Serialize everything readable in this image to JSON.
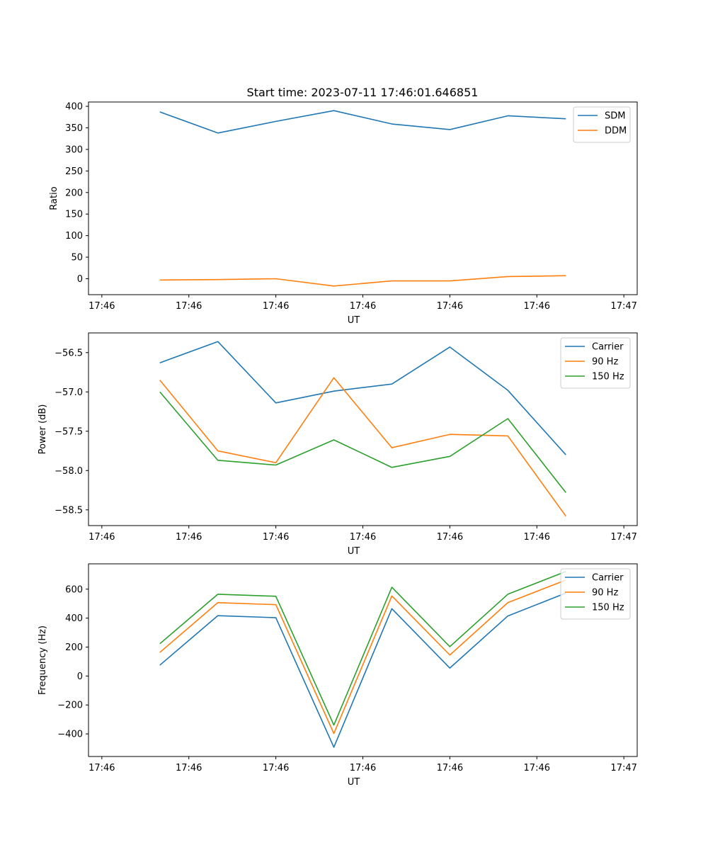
{
  "figure_title": "Start time: 2023-07-11 17:46:01.646851",
  "chart_data": [
    {
      "type": "line",
      "title": "Start time: 2023-07-11 17:46:01.646851",
      "xlabel": "UT",
      "ylabel": "Ratio",
      "xlim": [
        -0.23,
        9.23
      ],
      "ylim": [
        -37,
        410
      ],
      "xtick_labels": [
        "17:46",
        "17:46",
        "17:46",
        "17:46",
        "17:46",
        "17:46",
        "17:47"
      ],
      "yticks": [
        0,
        50,
        100,
        150,
        200,
        250,
        300,
        350,
        400
      ],
      "x": [
        1,
        2,
        3,
        4,
        5,
        6,
        7,
        8
      ],
      "legend_position": "upper right",
      "series": [
        {
          "name": "SDM",
          "color": "#1f77b4",
          "values": [
            387,
            338,
            365,
            390,
            359,
            346,
            378,
            371
          ]
        },
        {
          "name": "DDM",
          "color": "#ff7f0e",
          "values": [
            -3,
            -2,
            0,
            -17,
            -5,
            -5,
            5,
            7
          ]
        }
      ]
    },
    {
      "type": "line",
      "title": "",
      "xlabel": "UT",
      "ylabel": "Power (dB)",
      "xlim": [
        -0.23,
        9.23
      ],
      "ylim": [
        -58.7,
        -56.25
      ],
      "xtick_labels": [
        "17:46",
        "17:46",
        "17:46",
        "17:46",
        "17:46",
        "17:46",
        "17:47"
      ],
      "yticks": [
        -58.5,
        -58.0,
        -57.5,
        -57.0,
        -56.5
      ],
      "ytick_labels": [
        "−58.5",
        "−58.0",
        "−57.5",
        "−57.0",
        "−56.5"
      ],
      "x": [
        1,
        2,
        3,
        4,
        5,
        6,
        7,
        8
      ],
      "legend_position": "upper right",
      "series": [
        {
          "name": "Carrier",
          "color": "#1f77b4",
          "values": [
            -56.63,
            -56.36,
            -57.14,
            -56.99,
            -56.9,
            -56.43,
            -56.98,
            -57.8
          ]
        },
        {
          "name": "90 Hz",
          "color": "#ff7f0e",
          "values": [
            -56.85,
            -57.75,
            -57.9,
            -56.82,
            -57.71,
            -57.54,
            -57.56,
            -58.58
          ]
        },
        {
          "name": "150 Hz",
          "color": "#2ca02c",
          "values": [
            -57.0,
            -57.87,
            -57.93,
            -57.61,
            -57.96,
            -57.82,
            -57.34,
            -58.28
          ]
        }
      ]
    },
    {
      "type": "line",
      "title": "",
      "xlabel": "UT",
      "ylabel": "Frequency (Hz)",
      "xlim": [
        -0.23,
        9.23
      ],
      "ylim": [
        -556,
        775
      ],
      "xtick_labels": [
        "17:46",
        "17:46",
        "17:46",
        "17:46",
        "17:46",
        "17:46",
        "17:47"
      ],
      "yticks": [
        -400,
        -200,
        0,
        200,
        400,
        600
      ],
      "ytick_labels": [
        "−400",
        "−200",
        "0",
        "200",
        "400",
        "600"
      ],
      "x": [
        1,
        2,
        3,
        4,
        5,
        6,
        7,
        8
      ],
      "legend_position": "upper right",
      "series": [
        {
          "name": "Carrier",
          "color": "#1f77b4",
          "values": [
            75,
            417,
            403,
            -492,
            465,
            55,
            415,
            573
          ]
        },
        {
          "name": "90 Hz",
          "color": "#ff7f0e",
          "values": [
            163,
            507,
            493,
            -397,
            553,
            145,
            507,
            663
          ]
        },
        {
          "name": "150 Hz",
          "color": "#2ca02c",
          "values": [
            223,
            565,
            551,
            -339,
            613,
            203,
            565,
            722
          ]
        }
      ]
    }
  ]
}
